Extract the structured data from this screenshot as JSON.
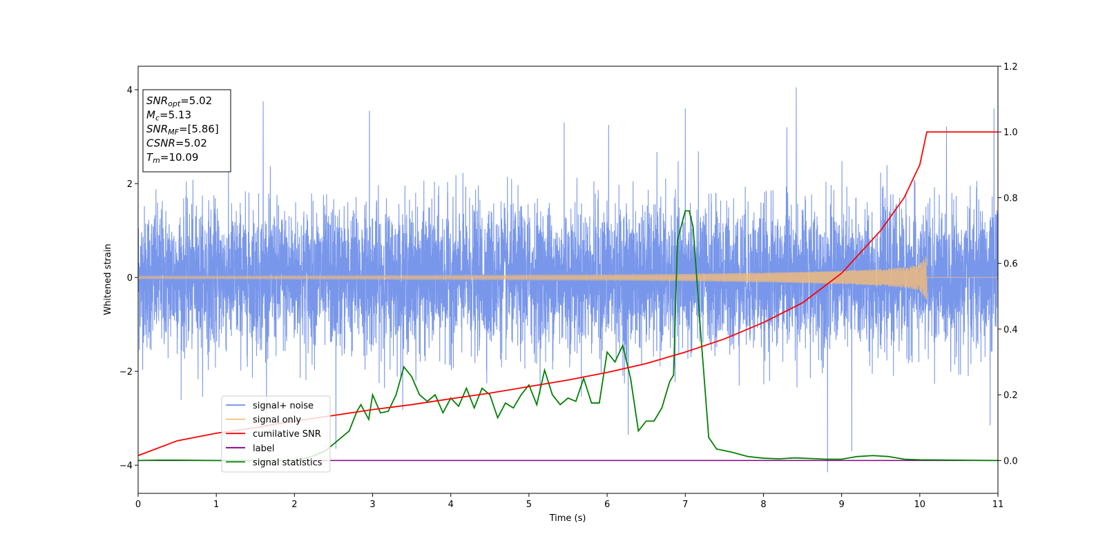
{
  "chart_data": {
    "type": "line",
    "xlabel": "Time (s)",
    "ylabel": "Whitened strain",
    "xlim": [
      0,
      11
    ],
    "ylim_left": [
      -4.6,
      4.5
    ],
    "ylim_right": [
      -0.1,
      1.2
    ],
    "x_ticks": [
      0,
      1,
      2,
      3,
      4,
      5,
      6,
      7,
      8,
      9,
      10,
      11
    ],
    "y_ticks_left": [
      -4,
      -2,
      0,
      2,
      4
    ],
    "y_ticks_right": [
      0.0,
      0.2,
      0.4,
      0.6,
      0.8,
      1.0,
      1.2
    ],
    "y_tick_labels_left": [
      "−4",
      "−2",
      "0",
      "2",
      "4"
    ],
    "y_tick_labels_right": [
      "0.0",
      "0.2",
      "0.4",
      "0.6",
      "0.8",
      "1.0",
      "1.2"
    ],
    "grid": false,
    "legend_position": "lower-left",
    "info_box": [
      {
        "main": "SNR",
        "sub": "opt",
        "rest": "=5.02"
      },
      {
        "main": "M",
        "sub": "c",
        "rest": "=5.13"
      },
      {
        "main": "SNR",
        "sub": "MF",
        "rest": "=[5.86]"
      },
      {
        "main": "CSNR",
        "sub": "",
        "rest": "=5.02"
      },
      {
        "main": "T",
        "sub": "m",
        "rest": "=10.09"
      }
    ],
    "series": [
      {
        "name": "signal+ noise",
        "axis": "left",
        "color": "#6a8ce8",
        "description_values": {
          "approx_std": 0.75,
          "min": -4.15,
          "max": 4.05,
          "spikes_up": [
            [
              1.6,
              3.75
            ],
            [
              2.96,
              3.55
            ],
            [
              6.02,
              3.25
            ],
            [
              7.0,
              3.6
            ],
            [
              8.42,
              4.05
            ],
            [
              10.95,
              3.6
            ],
            [
              8.3,
              3.2
            ],
            [
              5.45,
              3.3
            ]
          ],
          "spikes_down": [
            [
              8.82,
              -4.15
            ],
            [
              9.13,
              -3.7
            ],
            [
              2.53,
              -3.65
            ],
            [
              6.27,
              -3.35
            ],
            [
              10.9,
              -3.15
            ]
          ]
        }
      },
      {
        "name": "signal only",
        "axis": "left",
        "color": "#f5bd77",
        "envelope": {
          "x": [
            0,
            1,
            2,
            3,
            4,
            5,
            6,
            7,
            8,
            9,
            9.5,
            9.8,
            10.0,
            10.09,
            11
          ],
          "amp": [
            0.03,
            0.03,
            0.035,
            0.04,
            0.045,
            0.05,
            0.06,
            0.075,
            0.1,
            0.14,
            0.18,
            0.22,
            0.28,
            0.5,
            0.0
          ]
        },
        "end_time": 10.09
      },
      {
        "name": "cumilative SNR",
        "axis": "right",
        "color": "#ff0000",
        "x": [
          0,
          0.5,
          1,
          1.5,
          2,
          2.5,
          3,
          3.5,
          4,
          4.5,
          5,
          5.5,
          6,
          6.5,
          7,
          7.5,
          8,
          8.5,
          9,
          9.5,
          9.8,
          10.0,
          10.09,
          11
        ],
        "values": [
          0.015,
          0.06,
          0.083,
          0.1,
          0.12,
          0.137,
          0.155,
          0.17,
          0.188,
          0.205,
          0.225,
          0.245,
          0.268,
          0.295,
          0.33,
          0.37,
          0.42,
          0.48,
          0.57,
          0.7,
          0.8,
          0.9,
          1.0,
          1.0
        ]
      },
      {
        "name": "label",
        "axis": "right",
        "color": "#800080",
        "x": [
          0,
          11
        ],
        "values": [
          0.0,
          0.0
        ]
      },
      {
        "name": "signal statistics",
        "axis": "right",
        "color": "#008000",
        "x": [
          0,
          0.25,
          0.5,
          1,
          1.5,
          2,
          2.2,
          2.4,
          2.5,
          2.6,
          2.7,
          2.8,
          2.85,
          2.95,
          3.0,
          3.1,
          3.2,
          3.3,
          3.4,
          3.5,
          3.6,
          3.7,
          3.8,
          3.9,
          4.0,
          4.1,
          4.2,
          4.3,
          4.4,
          4.5,
          4.6,
          4.7,
          4.8,
          4.9,
          5.0,
          5.1,
          5.2,
          5.3,
          5.4,
          5.5,
          5.6,
          5.7,
          5.8,
          5.9,
          6.0,
          6.1,
          6.2,
          6.3,
          6.4,
          6.5,
          6.6,
          6.7,
          6.8,
          6.85,
          6.9,
          7.0,
          7.05,
          7.1,
          7.2,
          7.3,
          7.4,
          7.6,
          7.8,
          8.0,
          8.2,
          8.4,
          8.6,
          8.8,
          9.0,
          9.2,
          9.4,
          9.6,
          9.8,
          10.0,
          10.5,
          11
        ],
        "values": [
          0.0,
          0.001,
          0.001,
          0.0,
          0.0,
          0.0,
          0.01,
          0.03,
          0.05,
          0.07,
          0.09,
          0.15,
          0.17,
          0.125,
          0.2,
          0.145,
          0.15,
          0.2,
          0.285,
          0.255,
          0.2,
          0.18,
          0.2,
          0.145,
          0.19,
          0.165,
          0.22,
          0.16,
          0.22,
          0.2,
          0.13,
          0.175,
          0.16,
          0.2,
          0.23,
          0.17,
          0.275,
          0.2,
          0.17,
          0.19,
          0.18,
          0.25,
          0.175,
          0.175,
          0.33,
          0.3,
          0.35,
          0.25,
          0.09,
          0.12,
          0.12,
          0.16,
          0.24,
          0.26,
          0.67,
          0.76,
          0.76,
          0.71,
          0.38,
          0.07,
          0.035,
          0.025,
          0.012,
          0.007,
          0.005,
          0.008,
          0.006,
          0.004,
          0.004,
          0.012,
          0.015,
          0.012,
          0.004,
          0.002,
          0.001,
          0.0
        ]
      }
    ]
  }
}
